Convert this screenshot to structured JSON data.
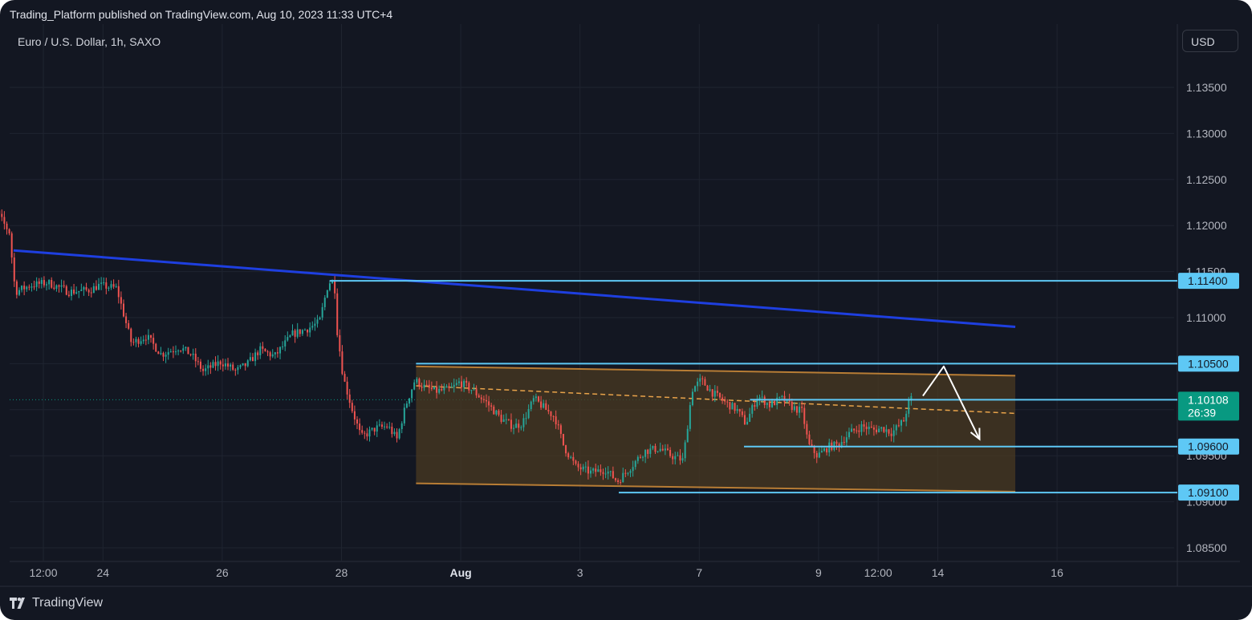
{
  "header": {
    "title": "Trading_Platform published on TradingView.com, Aug 10, 2023 11:33 UTC+4"
  },
  "symbol": {
    "legend": "Euro / U.S. Dollar, 1h, SAXO"
  },
  "toolbar": {
    "currency": "USD"
  },
  "footer": {
    "brand": "TradingView",
    "logo_icon": "tradingview-logo-icon"
  },
  "colors": {
    "background": "#131722",
    "grid": "#1f2430",
    "up_candle": "#26a69a",
    "down_candle": "#ef5350",
    "trendline": "#1e3fe0",
    "horizontal_level": "#5ec8f5",
    "channel_border": "#b87d35",
    "channel_fill": "#4a3a22",
    "midline": "#e8a34a",
    "current_price_badge": "#089981",
    "projection_arrow": "#ffffff"
  },
  "chart_data": {
    "type": "candlestick",
    "symbol": "Euro / U.S. Dollar",
    "interval": "1h",
    "exchange": "SAXO",
    "ylim": [
      1.083,
      1.139
    ],
    "y_ticks": [
      "1.13500",
      "1.13000",
      "1.12500",
      "1.12000",
      "1.11500",
      "1.11000",
      "1.10500",
      "1.10000",
      "1.09500",
      "1.09000",
      "1.08500"
    ],
    "x_ticks": [
      {
        "label": "12:00",
        "t": 0.5
      },
      {
        "label": "24",
        "t": 1.5
      },
      {
        "label": "26",
        "t": 3.5
      },
      {
        "label": "28",
        "t": 5.5
      },
      {
        "label": "Aug",
        "t": 7.5,
        "bold": true
      },
      {
        "label": "3",
        "t": 9.5
      },
      {
        "label": "7",
        "t": 11.5
      },
      {
        "label": "9",
        "t": 13.5
      },
      {
        "label": "12:00",
        "t": 14.5
      },
      {
        "label": "14",
        "t": 15.5
      },
      {
        "label": "16",
        "t": 17.5
      }
    ],
    "price_path": [
      [
        -0.55,
        1.1205
      ],
      [
        -0.35,
        1.1225
      ],
      [
        -0.2,
        1.1208
      ],
      [
        -0.05,
        1.1193
      ],
      [
        0.05,
        1.1128
      ],
      [
        0.3,
        1.1135
      ],
      [
        0.6,
        1.1138
      ],
      [
        0.95,
        1.1128
      ],
      [
        1.3,
        1.113
      ],
      [
        1.45,
        1.1135
      ],
      [
        1.75,
        1.1132
      ],
      [
        2.0,
        1.1072
      ],
      [
        2.25,
        1.108
      ],
      [
        2.5,
        1.106
      ],
      [
        2.8,
        1.1068
      ],
      [
        3.0,
        1.106
      ],
      [
        3.2,
        1.1042
      ],
      [
        3.5,
        1.1052
      ],
      [
        3.75,
        1.1042
      ],
      [
        3.95,
        1.105
      ],
      [
        4.15,
        1.1065
      ],
      [
        4.4,
        1.1058
      ],
      [
        4.7,
        1.1082
      ],
      [
        4.95,
        1.1088
      ],
      [
        5.15,
        1.1095
      ],
      [
        5.3,
        1.1138
      ],
      [
        5.4,
        1.114
      ],
      [
        5.45,
        1.1085
      ],
      [
        5.55,
        1.1035
      ],
      [
        5.7,
        1.1
      ],
      [
        5.85,
        1.097
      ],
      [
        6.1,
        1.098
      ],
      [
        6.3,
        1.0982
      ],
      [
        6.45,
        1.0968
      ],
      [
        6.6,
        1.1005
      ],
      [
        6.75,
        1.1032
      ],
      [
        6.9,
        1.1025
      ],
      [
        7.1,
        1.102
      ],
      [
        7.35,
        1.1022
      ],
      [
        7.5,
        1.103
      ],
      [
        7.7,
        1.1022
      ],
      [
        7.95,
        1.1008
      ],
      [
        8.2,
        1.099
      ],
      [
        8.4,
        1.0982
      ],
      [
        8.55,
        1.0985
      ],
      [
        8.75,
        1.1012
      ],
      [
        8.95,
        1.1
      ],
      [
        9.1,
        1.0992
      ],
      [
        9.25,
        1.096
      ],
      [
        9.45,
        1.0938
      ],
      [
        9.7,
        1.0932
      ],
      [
        9.95,
        1.0935
      ],
      [
        10.15,
        1.0922
      ],
      [
        10.4,
        1.094
      ],
      [
        10.6,
        1.0955
      ],
      [
        10.85,
        1.0958
      ],
      [
        11.05,
        1.095
      ],
      [
        11.25,
        1.0945
      ],
      [
        11.4,
        1.1022
      ],
      [
        11.55,
        1.1032
      ],
      [
        11.75,
        1.1018
      ],
      [
        11.95,
        1.1008
      ],
      [
        12.15,
        1.1
      ],
      [
        12.3,
        1.0985
      ],
      [
        12.5,
        1.1015
      ],
      [
        12.7,
        1.1005
      ],
      [
        12.9,
        1.1012
      ],
      [
        13.1,
        1.1002
      ],
      [
        13.25,
        1.0998
      ],
      [
        13.35,
        1.0962
      ],
      [
        13.5,
        1.095
      ],
      [
        13.7,
        1.096
      ],
      [
        13.85,
        1.0962
      ],
      [
        14.05,
        1.0975
      ],
      [
        14.25,
        1.0982
      ],
      [
        14.45,
        1.0978
      ],
      [
        14.6,
        1.098
      ],
      [
        14.75,
        1.0975
      ],
      [
        14.95,
        1.0988
      ],
      [
        15.05,
        1.1012
      ]
    ],
    "price_lines": [
      {
        "price": 1.114,
        "label": "1.11400",
        "from_t": 5.3
      },
      {
        "price": 1.105,
        "label": "1.10500",
        "from_t": 6.75
      },
      {
        "price": 1.101,
        "label": "1.10100",
        "from_t": 12.35,
        "badge_only": true
      },
      {
        "price": 1.096,
        "label": "1.09600",
        "from_t": 12.25
      },
      {
        "price": 1.091,
        "label": "1.09100",
        "from_t": 10.15
      }
    ],
    "current_price": {
      "label": "1.10108",
      "countdown": "26:39",
      "price": 1.10108
    },
    "trendline": {
      "t1": 0.0,
      "p1": 1.1173,
      "t2": 16.8,
      "p2": 1.109
    },
    "channel": {
      "t_start": 6.75,
      "t_end": 16.8,
      "top_start": 1.1047,
      "top_end": 1.1037,
      "bottom_start": 1.092,
      "bottom_end": 1.0911,
      "midline_start": 1.1026,
      "midline_end": 1.0996
    },
    "projection": [
      {
        "t": 15.25,
        "p": 1.1015
      },
      {
        "t": 15.6,
        "p": 1.1047
      },
      {
        "t": 16.2,
        "p": 1.0968
      }
    ]
  }
}
